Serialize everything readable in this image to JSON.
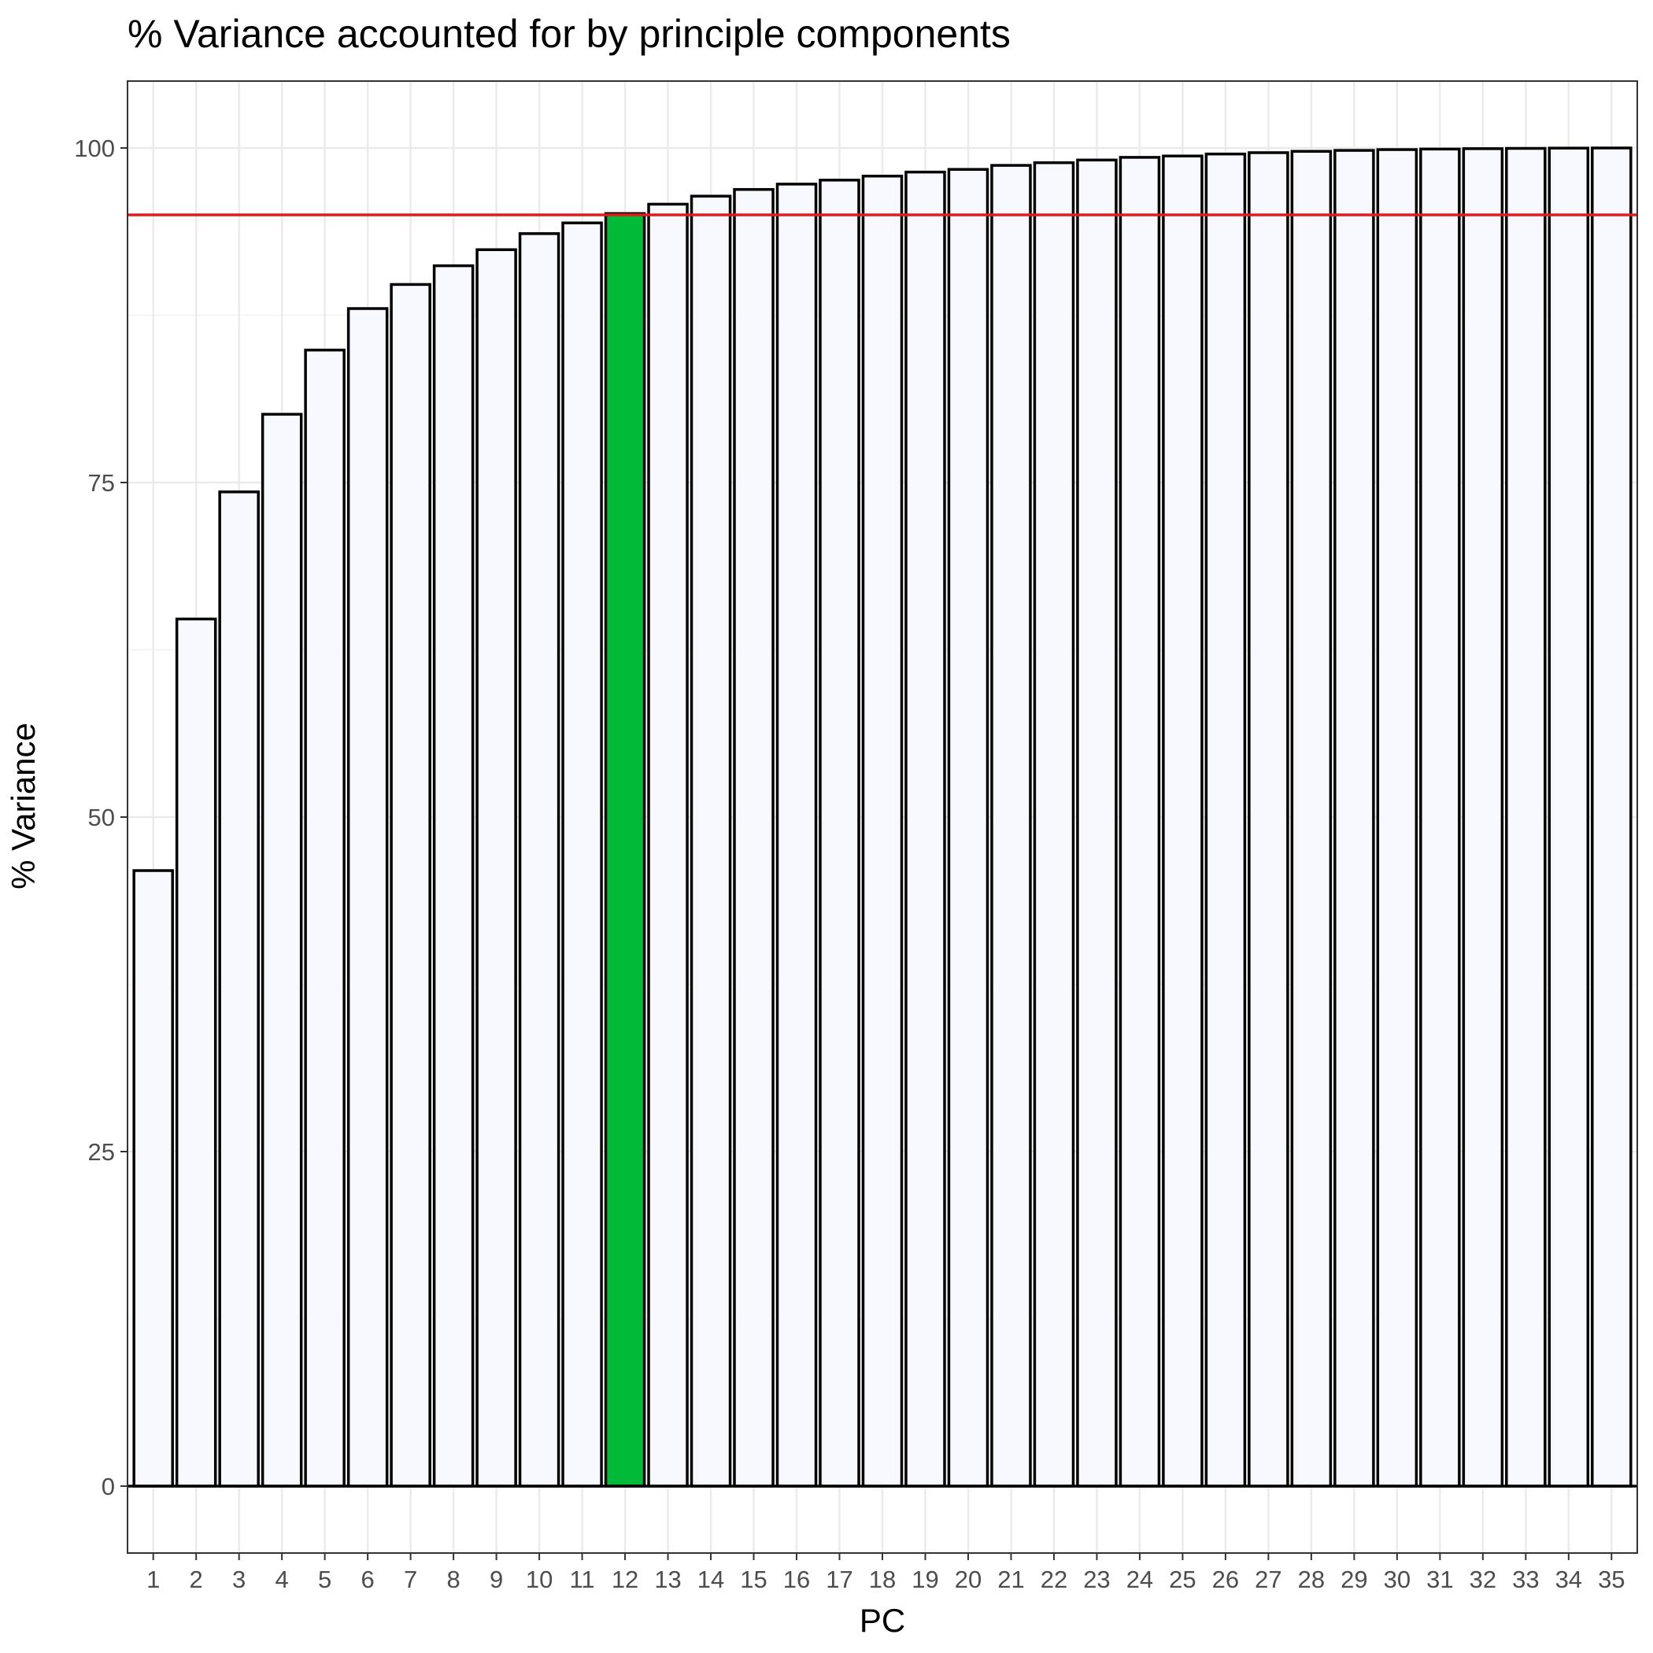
{
  "chart_data": {
    "type": "bar",
    "title": "% Variance accounted for by principle components",
    "xlabel": "PC",
    "ylabel": "% Variance",
    "categories": [
      "1",
      "2",
      "3",
      "4",
      "5",
      "6",
      "7",
      "8",
      "9",
      "10",
      "11",
      "12",
      "13",
      "14",
      "15",
      "16",
      "17",
      "18",
      "19",
      "20",
      "21",
      "22",
      "23",
      "24",
      "25",
      "26",
      "27",
      "28",
      "29",
      "30",
      "31",
      "32",
      "33",
      "34",
      "35"
    ],
    "values": [
      46.0,
      64.8,
      74.3,
      80.1,
      84.9,
      88.0,
      89.8,
      91.2,
      92.4,
      93.6,
      94.4,
      95.1,
      95.8,
      96.4,
      96.9,
      97.3,
      97.6,
      97.9,
      98.2,
      98.4,
      98.7,
      98.9,
      99.1,
      99.3,
      99.4,
      99.55,
      99.65,
      99.75,
      99.82,
      99.88,
      99.92,
      99.95,
      99.97,
      99.99,
      100.0
    ],
    "highlight_index": 11,
    "threshold": 95,
    "ylim": [
      -5,
      105
    ],
    "yticks": [
      0,
      25,
      50,
      75,
      100
    ],
    "grid": true,
    "legend": "none",
    "colors": {
      "bar_fill": "#f8f8ff",
      "highlight_fill": "#00ba38",
      "bar_stroke": "#000000",
      "threshold_line": "#e41a1c",
      "grid_major": "#ebebeb",
      "grid_minor": "#f5f5f5",
      "panel_border": "#333333"
    }
  }
}
